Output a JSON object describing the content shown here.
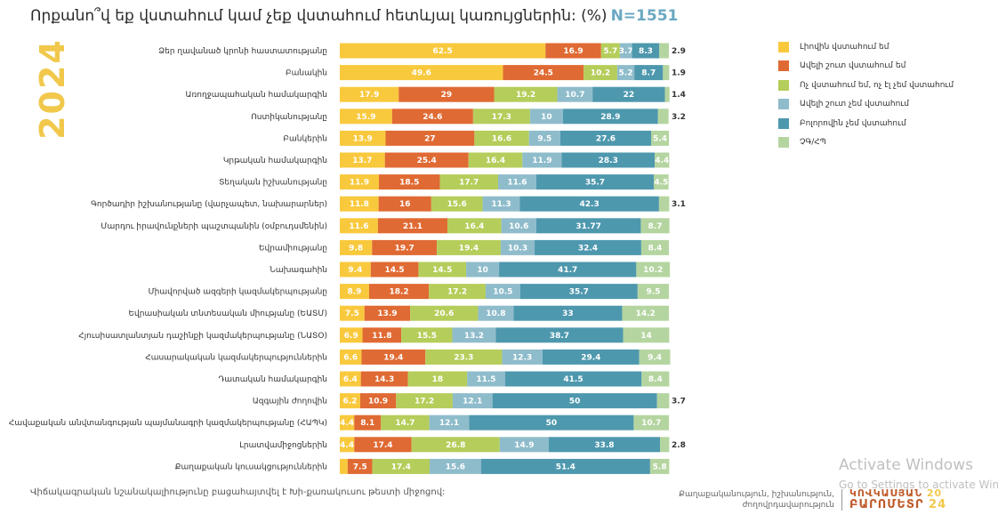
{
  "title": "Որքանո՞վ եք վստահում կամ չեք վստահում հետևյալ կառույցներին: (%)",
  "n_label": "N=1551",
  "year": "2024",
  "footer": {
    "note": "Վիճակագրական նշանակալիությունը բացահայտվել է Խի-քառակուսու թեստի միջոցով:",
    "source_line1": "Քաղաքականություն, իշխանություն,",
    "source_line2": "ժողովրդավարություն",
    "brand_line1": "ԿՈՎԿԱՍՅԱՆ",
    "brand_line2": "ԲԱՐՈՄԵՏՐ",
    "brand_year_top": "20",
    "brand_year_bottom": "24"
  },
  "watermark": {
    "line1": "Activate Windows",
    "line2": "Go to Settings to activate Windows."
  },
  "chart_data": {
    "type": "bar",
    "orientation": "horizontal",
    "stacked": true,
    "xlim": [
      0,
      100
    ],
    "legend_position": "right",
    "categories": [
      "Ձեր ղավանած կրոնի հաստատությանը",
      "Բանակին",
      "Առողջապահական համակարգին",
      "Ոստիկանությանը",
      "Բանկերին",
      "Կրթական համակարգին",
      "Տեղական իշխանությանը",
      "Գործադիր իշխանությանը (վարչապետ, նախարարներ)",
      "Մարդու իրավունքների պաշտպանին (օմբուդսմենին)",
      "Եվրամիությանը",
      "Նախագահին",
      "Միավորված ազգերի կազմակերպությանը",
      "Եվրասիական տնտեսական միությանը (ԵԱՏՄ)",
      "Հյուսիսատլանտյան դաշինքի կազմակերպությանը (ՆԱՏՕ)",
      "Հասարակական կազմակերպություններին",
      "Դատական համակարգին",
      "Ազգային ժողովին",
      "Հավաքական անվտանգության պայմանագրի կազմակերպությանը (ՀԱՊԿ)",
      "Լրատվամիջոցներին",
      "Քաղաքական կուսակցություններին"
    ],
    "series": [
      {
        "name": "Լիովին վստահում եմ",
        "color": "#f9c93d",
        "values": [
          62.5,
          49.6,
          17.9,
          15.9,
          13.9,
          13.7,
          11.9,
          11.8,
          11.6,
          9.8,
          9.4,
          8.9,
          7.5,
          6.9,
          6.6,
          6.4,
          6.2,
          4.4,
          4.4,
          2.4
        ]
      },
      {
        "name": "Ավելի շուտ վստահում եմ",
        "color": "#e06a33",
        "values": [
          16.9,
          24.5,
          29.0,
          24.6,
          27.0,
          25.4,
          18.5,
          16.0,
          21.1,
          19.7,
          14.5,
          18.2,
          13.9,
          11.8,
          19.4,
          14.3,
          10.9,
          8.1,
          17.4,
          7.5
        ]
      },
      {
        "name": "Ոչ վստահում եմ, ոչ էլ չեմ վստահում",
        "color": "#b5cd5a",
        "values": [
          5.7,
          10.2,
          19.2,
          17.3,
          16.6,
          16.4,
          17.7,
          15.6,
          16.4,
          19.4,
          14.5,
          17.2,
          20.6,
          15.5,
          23.3,
          18.0,
          17.2,
          14.7,
          26.8,
          17.4
        ]
      },
      {
        "name": "Ավելի շուտ չեմ վստահում",
        "color": "#8fbccb",
        "values": [
          3.7,
          5.2,
          10.7,
          10.0,
          9.5,
          11.9,
          11.6,
          11.3,
          10.6,
          10.3,
          10.0,
          10.5,
          10.8,
          13.2,
          12.3,
          11.5,
          12.1,
          12.1,
          14.9,
          15.6
        ]
      },
      {
        "name": "Բոլորովին չեմ վստահում",
        "color": "#4e98ae",
        "values": [
          8.3,
          8.7,
          22.0,
          28.9,
          27.6,
          28.3,
          35.7,
          42.3,
          31.77,
          32.4,
          41.7,
          35.7,
          33.0,
          38.7,
          29.4,
          41.5,
          50.0,
          50.0,
          33.8,
          51.4
        ]
      },
      {
        "name": "ՉԳ/ՀՊ",
        "color": "#b5d5a0",
        "values": [
          2.9,
          1.9,
          1.4,
          3.2,
          5.4,
          4.4,
          4.5,
          3.1,
          8.7,
          8.4,
          10.2,
          9.5,
          14.2,
          14.0,
          9.4,
          8.4,
          3.7,
          10.7,
          2.8,
          5.8
        ]
      }
    ]
  }
}
